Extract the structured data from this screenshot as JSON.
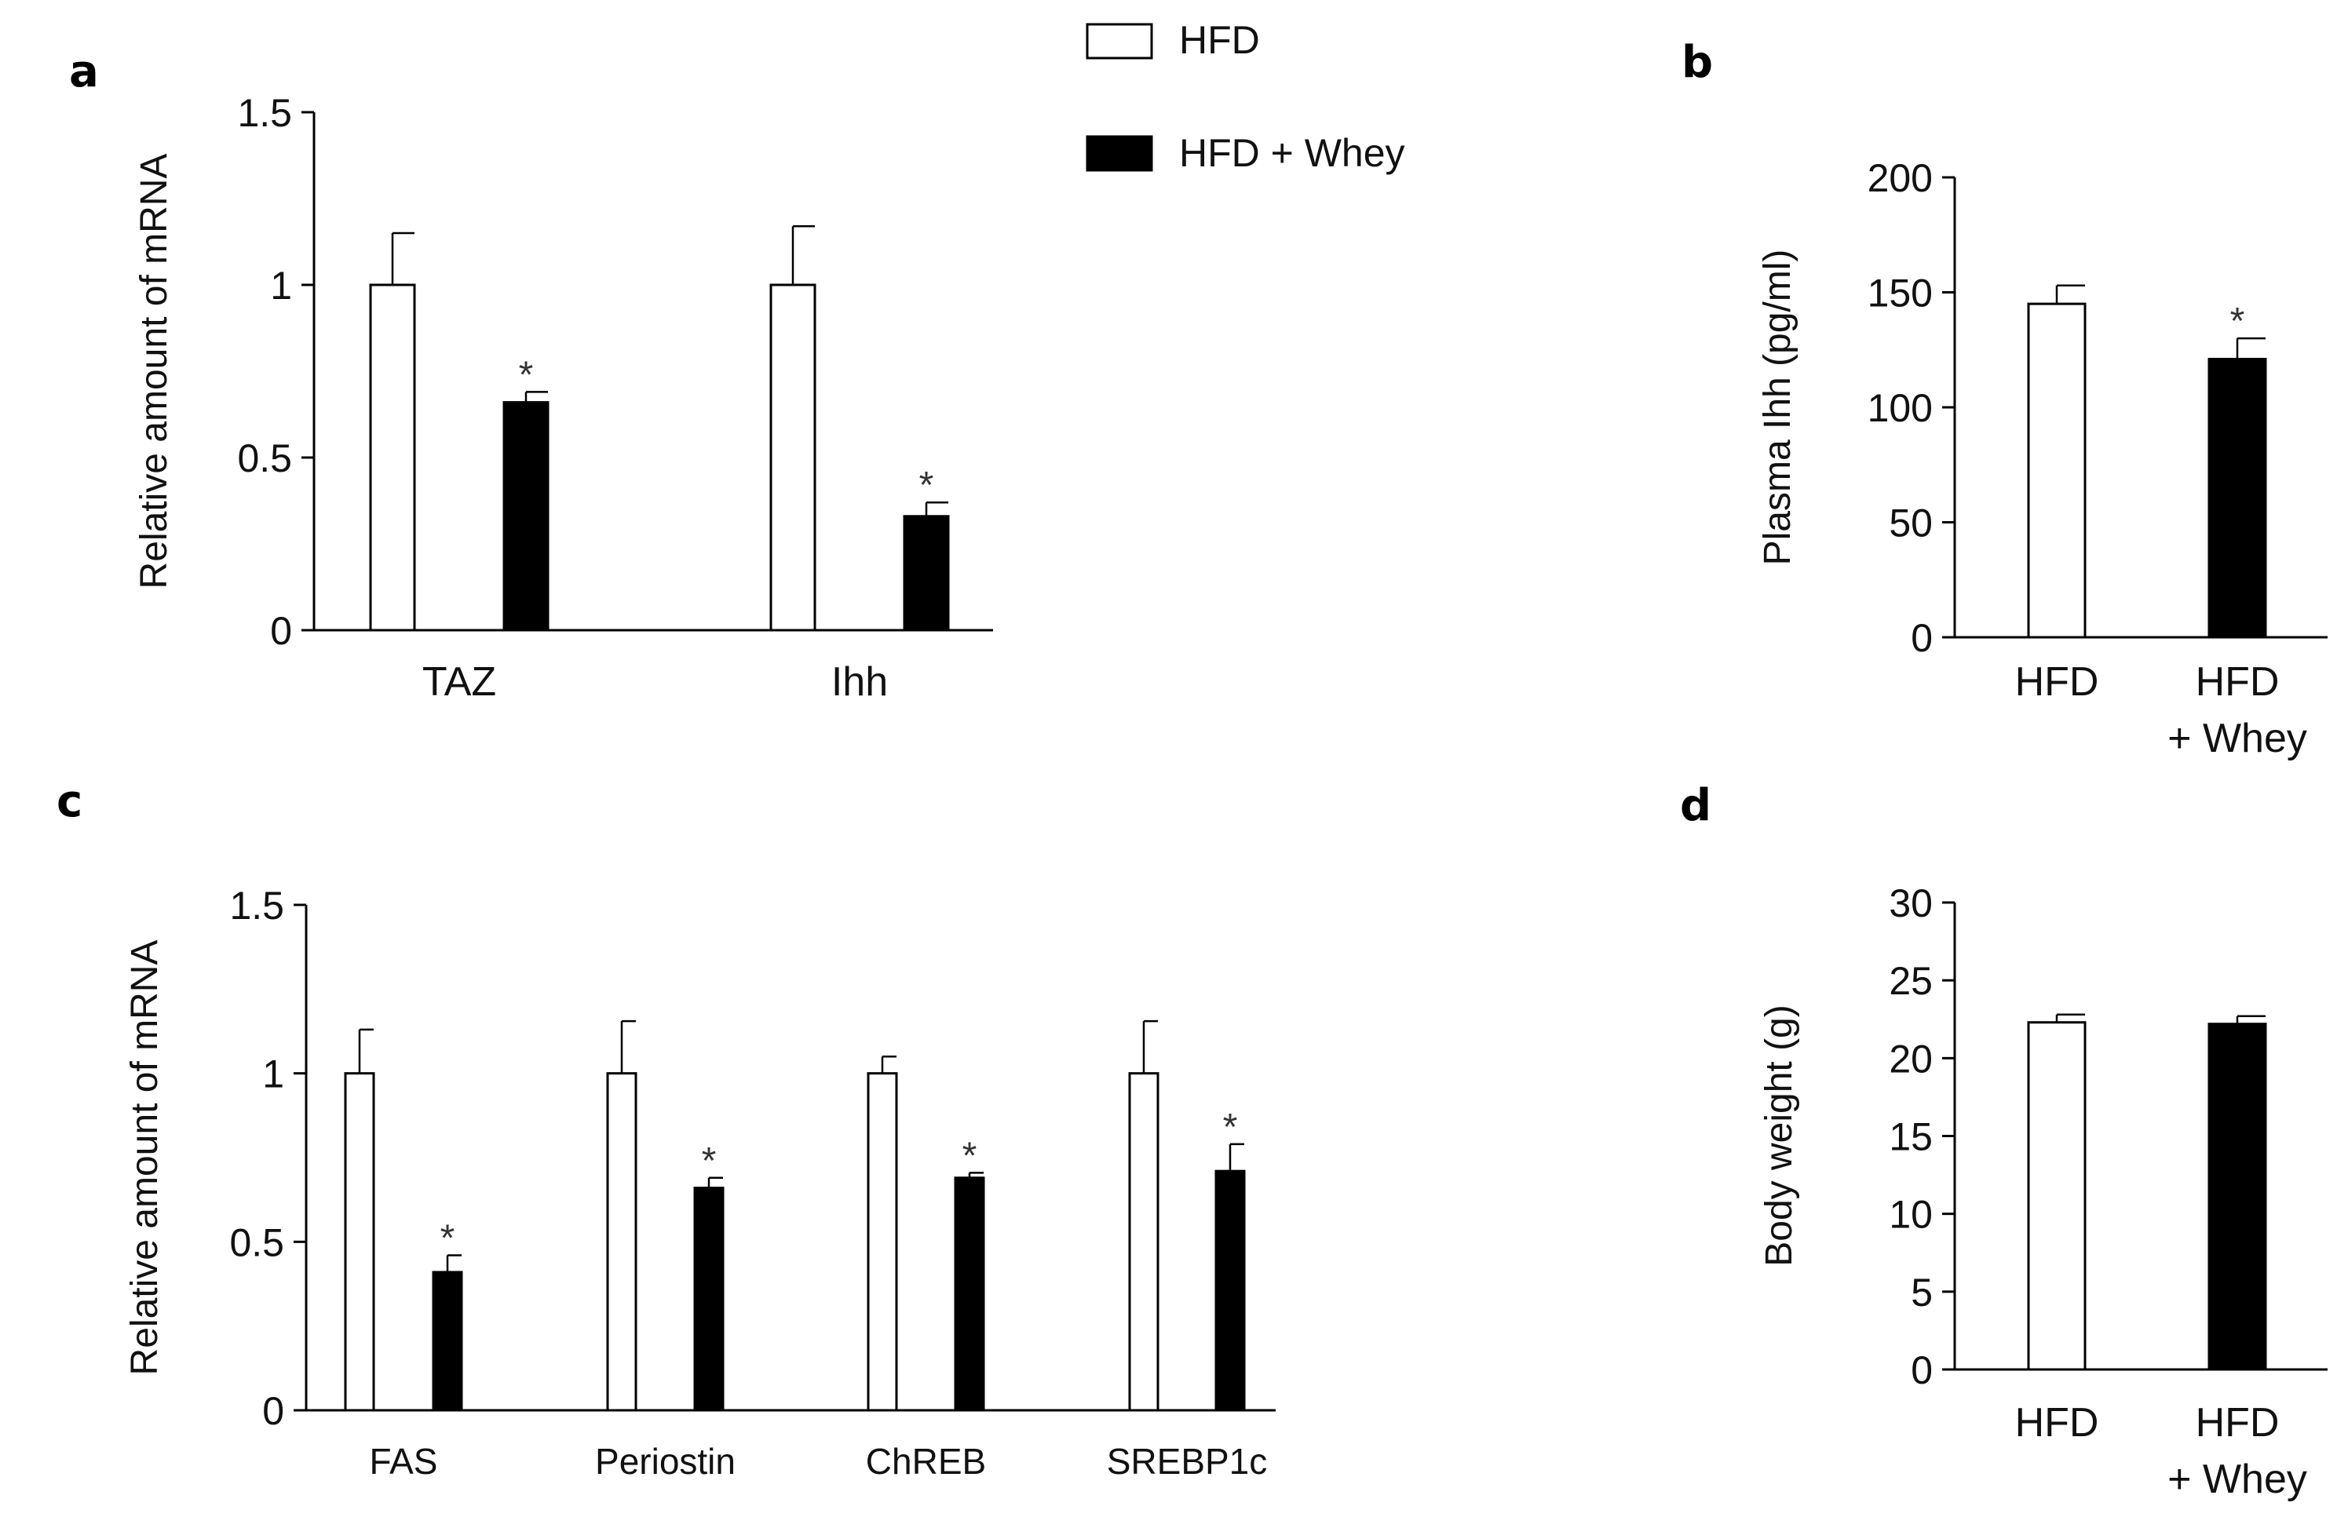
{
  "legend": {
    "items": [
      {
        "label": "HFD",
        "fill": "#ffffff"
      },
      {
        "label": "HFD + Whey",
        "fill": "#000000"
      }
    ]
  },
  "colors": {
    "hfd": "#ffffff",
    "whey": "#000000",
    "axis": "#000000"
  },
  "chart_data": [
    {
      "id": "a",
      "panel_label": "a",
      "type": "bar",
      "ylabel": "Relative amount of mRNA",
      "ylim": [
        0,
        1.5
      ],
      "yticks": [
        "0",
        "0.5",
        "1",
        "1.5"
      ],
      "categories": [
        "TAZ",
        "Ihh"
      ],
      "series": [
        {
          "name": "HFD",
          "values": [
            1.0,
            1.0
          ],
          "errors": [
            0.15,
            0.17
          ],
          "sig": [
            false,
            false
          ]
        },
        {
          "name": "HFD + Whey",
          "values": [
            0.66,
            0.33
          ],
          "errors": [
            0.03,
            0.04
          ],
          "sig": [
            true,
            true
          ]
        }
      ],
      "sig_mark": "*"
    },
    {
      "id": "b",
      "panel_label": "b",
      "type": "bar",
      "ylabel": "Plasma Ihh (pg/ml)",
      "ylim": [
        0,
        200
      ],
      "yticks": [
        "0",
        "50",
        "100",
        "150",
        "200"
      ],
      "categories": [
        [
          "HFD"
        ],
        [
          "HFD",
          "+ Whey"
        ]
      ],
      "values": [
        145,
        121
      ],
      "errors": [
        8,
        9
      ],
      "sig": [
        false,
        true
      ],
      "fills": [
        "#ffffff",
        "#000000"
      ],
      "sig_mark": "*"
    },
    {
      "id": "c",
      "panel_label": "c",
      "type": "bar",
      "ylabel": "Relative amount of mRNA",
      "ylim": [
        0,
        1.5
      ],
      "yticks": [
        "0",
        "0.5",
        "1",
        "1.5"
      ],
      "categories": [
        "FAS",
        "Periostin",
        "ChREB",
        "SREBP1c"
      ],
      "series": [
        {
          "name": "HFD",
          "values": [
            1.0,
            1.0,
            1.0,
            1.0
          ],
          "errors": [
            0.13,
            0.155,
            0.05,
            0.155
          ],
          "sig": [
            false,
            false,
            false,
            false
          ]
        },
        {
          "name": "HFD + Whey",
          "values": [
            0.41,
            0.66,
            0.69,
            0.71
          ],
          "errors": [
            0.05,
            0.03,
            0.015,
            0.08
          ],
          "sig": [
            true,
            true,
            true,
            true
          ]
        }
      ],
      "sig_mark": "*"
    },
    {
      "id": "d",
      "panel_label": "d",
      "type": "bar",
      "ylabel": "Body weight (g)",
      "ylim": [
        0,
        30
      ],
      "yticks": [
        "0",
        "5",
        "10",
        "15",
        "20",
        "25",
        "30"
      ],
      "categories": [
        [
          "HFD"
        ],
        [
          "HFD",
          "+ Whey"
        ]
      ],
      "values": [
        22.3,
        22.2
      ],
      "errors": [
        0.5,
        0.5
      ],
      "sig": [
        false,
        false
      ],
      "fills": [
        "#ffffff",
        "#000000"
      ],
      "sig_mark": "*"
    }
  ]
}
